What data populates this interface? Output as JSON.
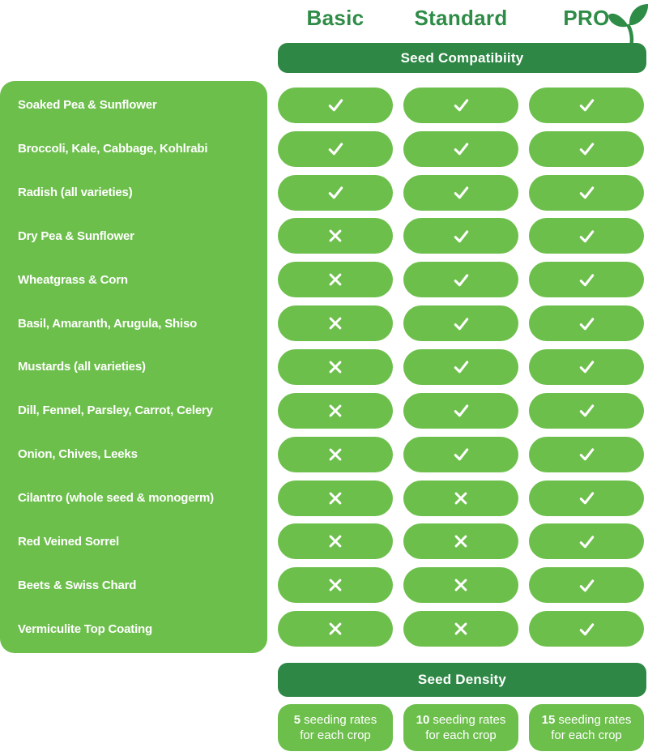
{
  "columns": [
    {
      "label": "Basic"
    },
    {
      "label": "Standard"
    },
    {
      "label": "PRO"
    }
  ],
  "pro_icon": "sprout-icon",
  "colors": {
    "light_green": "#6dbf4c",
    "dark_green": "#2e8745",
    "header_text_green": "#2e8c47",
    "text_white": "#ffffff"
  },
  "compatibility": {
    "title": "Seed Compatibiity",
    "rows": [
      {
        "label": "Soaked Pea & Sunflower",
        "values": [
          "check",
          "check",
          "check"
        ]
      },
      {
        "label": "Broccoli, Kale, Cabbage, Kohlrabi",
        "values": [
          "check",
          "check",
          "check"
        ]
      },
      {
        "label": "Radish (all varieties)",
        "values": [
          "check",
          "check",
          "check"
        ]
      },
      {
        "label": "Dry Pea & Sunflower",
        "values": [
          "cross",
          "check",
          "check"
        ]
      },
      {
        "label": "Wheatgrass & Corn",
        "values": [
          "cross",
          "check",
          "check"
        ]
      },
      {
        "label": "Basil, Amaranth, Arugula, Shiso",
        "values": [
          "cross",
          "check",
          "check"
        ]
      },
      {
        "label": "Mustards (all varieties)",
        "values": [
          "cross",
          "check",
          "check"
        ]
      },
      {
        "label": "Dill, Fennel, Parsley, Carrot, Celery",
        "values": [
          "cross",
          "check",
          "check"
        ]
      },
      {
        "label": "Onion, Chives, Leeks",
        "values": [
          "cross",
          "check",
          "check"
        ]
      },
      {
        "label": "Cilantro (whole seed & monogerm)",
        "values": [
          "cross",
          "cross",
          "check"
        ]
      },
      {
        "label": "Red Veined Sorrel",
        "values": [
          "cross",
          "cross",
          "check"
        ]
      },
      {
        "label": "Beets & Swiss Chard",
        "values": [
          "cross",
          "cross",
          "check"
        ]
      },
      {
        "label": "Vermiculite Top Coating",
        "values": [
          "cross",
          "cross",
          "check"
        ]
      }
    ]
  },
  "density": {
    "title": "Seed Density",
    "cells": [
      {
        "count": "5",
        "line1": "seeding rates",
        "line2": "for each crop"
      },
      {
        "count": "10",
        "line1": "seeding rates",
        "line2": "for each crop"
      },
      {
        "count": "15",
        "line1": "seeding rates",
        "line2": "for each crop"
      }
    ]
  },
  "chart_data": {
    "type": "table",
    "title": "Seed Compatibiity",
    "columns": [
      "Basic",
      "Standard",
      "PRO"
    ],
    "rows": [
      {
        "label": "Soaked Pea & Sunflower",
        "values": [
          "yes",
          "yes",
          "yes"
        ]
      },
      {
        "label": "Broccoli, Kale, Cabbage, Kohlrabi",
        "values": [
          "yes",
          "yes",
          "yes"
        ]
      },
      {
        "label": "Radish (all varieties)",
        "values": [
          "yes",
          "yes",
          "yes"
        ]
      },
      {
        "label": "Dry Pea & Sunflower",
        "values": [
          "no",
          "yes",
          "yes"
        ]
      },
      {
        "label": "Wheatgrass & Corn",
        "values": [
          "no",
          "yes",
          "yes"
        ]
      },
      {
        "label": "Basil, Amaranth, Arugula, Shiso",
        "values": [
          "no",
          "yes",
          "yes"
        ]
      },
      {
        "label": "Mustards (all varieties)",
        "values": [
          "no",
          "yes",
          "yes"
        ]
      },
      {
        "label": "Dill, Fennel, Parsley, Carrot, Celery",
        "values": [
          "no",
          "yes",
          "yes"
        ]
      },
      {
        "label": "Onion, Chives, Leeks",
        "values": [
          "no",
          "yes",
          "yes"
        ]
      },
      {
        "label": "Cilantro (whole seed & monogerm)",
        "values": [
          "no",
          "no",
          "yes"
        ]
      },
      {
        "label": "Red Veined Sorrel",
        "values": [
          "no",
          "no",
          "yes"
        ]
      },
      {
        "label": "Beets & Swiss Chard",
        "values": [
          "no",
          "no",
          "yes"
        ]
      },
      {
        "label": "Vermiculite Top Coating",
        "values": [
          "no",
          "no",
          "yes"
        ]
      }
    ],
    "footer_section": {
      "title": "Seed Density",
      "values": [
        "5 seeding rates for each crop",
        "10 seeding rates for each crop",
        "15 seeding rates for each crop"
      ]
    }
  }
}
